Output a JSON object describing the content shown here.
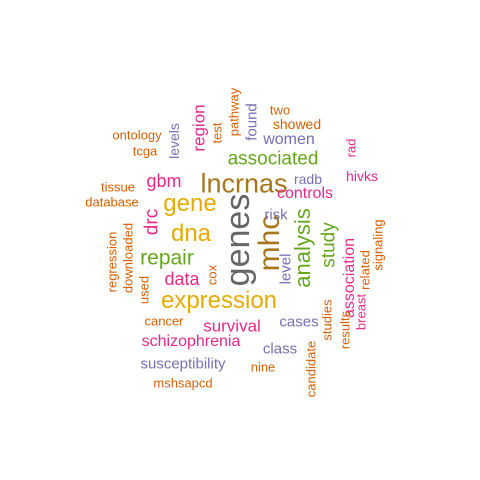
{
  "colors": {
    "orange": "#D95F02",
    "purple": "#7570B3",
    "magenta": "#E7298A",
    "green": "#66A61E",
    "gold": "#E6AB02",
    "brown": "#A6761D",
    "gray": "#666666"
  },
  "words": [
    {
      "text": "genes",
      "color": "gray"
    },
    {
      "text": "mhc",
      "color": "brown"
    },
    {
      "text": "lncrnas",
      "color": "brown"
    },
    {
      "text": "expression",
      "color": "gold"
    },
    {
      "text": "dna",
      "color": "gold"
    },
    {
      "text": "gene",
      "color": "gold"
    },
    {
      "text": "analysis",
      "color": "green"
    },
    {
      "text": "repair",
      "color": "green"
    },
    {
      "text": "associated",
      "color": "green"
    },
    {
      "text": "study",
      "color": "green"
    },
    {
      "text": "survival",
      "color": "magenta"
    },
    {
      "text": "gbm",
      "color": "magenta"
    },
    {
      "text": "drc",
      "color": "magenta"
    },
    {
      "text": "data",
      "color": "magenta"
    },
    {
      "text": "region",
      "color": "magenta"
    },
    {
      "text": "schizophrenia",
      "color": "magenta"
    },
    {
      "text": "association",
      "color": "magenta"
    },
    {
      "text": "controls",
      "color": "magenta"
    },
    {
      "text": "hivks",
      "color": "magenta"
    },
    {
      "text": "rad",
      "color": "magenta"
    },
    {
      "text": "breast",
      "color": "magenta"
    },
    {
      "text": "women",
      "color": "purple"
    },
    {
      "text": "found",
      "color": "purple"
    },
    {
      "text": "levels",
      "color": "purple"
    },
    {
      "text": "radb",
      "color": "purple"
    },
    {
      "text": "risk",
      "color": "purple"
    },
    {
      "text": "level",
      "color": "purple"
    },
    {
      "text": "cases",
      "color": "purple"
    },
    {
      "text": "class",
      "color": "purple"
    },
    {
      "text": "susceptibility",
      "color": "purple"
    },
    {
      "text": "two",
      "color": "orange"
    },
    {
      "text": "showed",
      "color": "orange"
    },
    {
      "text": "test",
      "color": "orange"
    },
    {
      "text": "pathway",
      "color": "orange"
    },
    {
      "text": "ontology",
      "color": "orange"
    },
    {
      "text": "tcga",
      "color": "orange"
    },
    {
      "text": "tissue",
      "color": "orange"
    },
    {
      "text": "database",
      "color": "orange"
    },
    {
      "text": "regression",
      "color": "orange"
    },
    {
      "text": "downloaded",
      "color": "orange"
    },
    {
      "text": "used",
      "color": "orange"
    },
    {
      "text": "cox",
      "color": "orange"
    },
    {
      "text": "cancer",
      "color": "orange"
    },
    {
      "text": "nine",
      "color": "orange"
    },
    {
      "text": "mshsapcd",
      "color": "orange"
    },
    {
      "text": "candidate",
      "color": "orange"
    },
    {
      "text": "studies",
      "color": "orange"
    },
    {
      "text": "results",
      "color": "orange"
    },
    {
      "text": "related",
      "color": "orange"
    },
    {
      "text": "signaling",
      "color": "orange"
    }
  ]
}
